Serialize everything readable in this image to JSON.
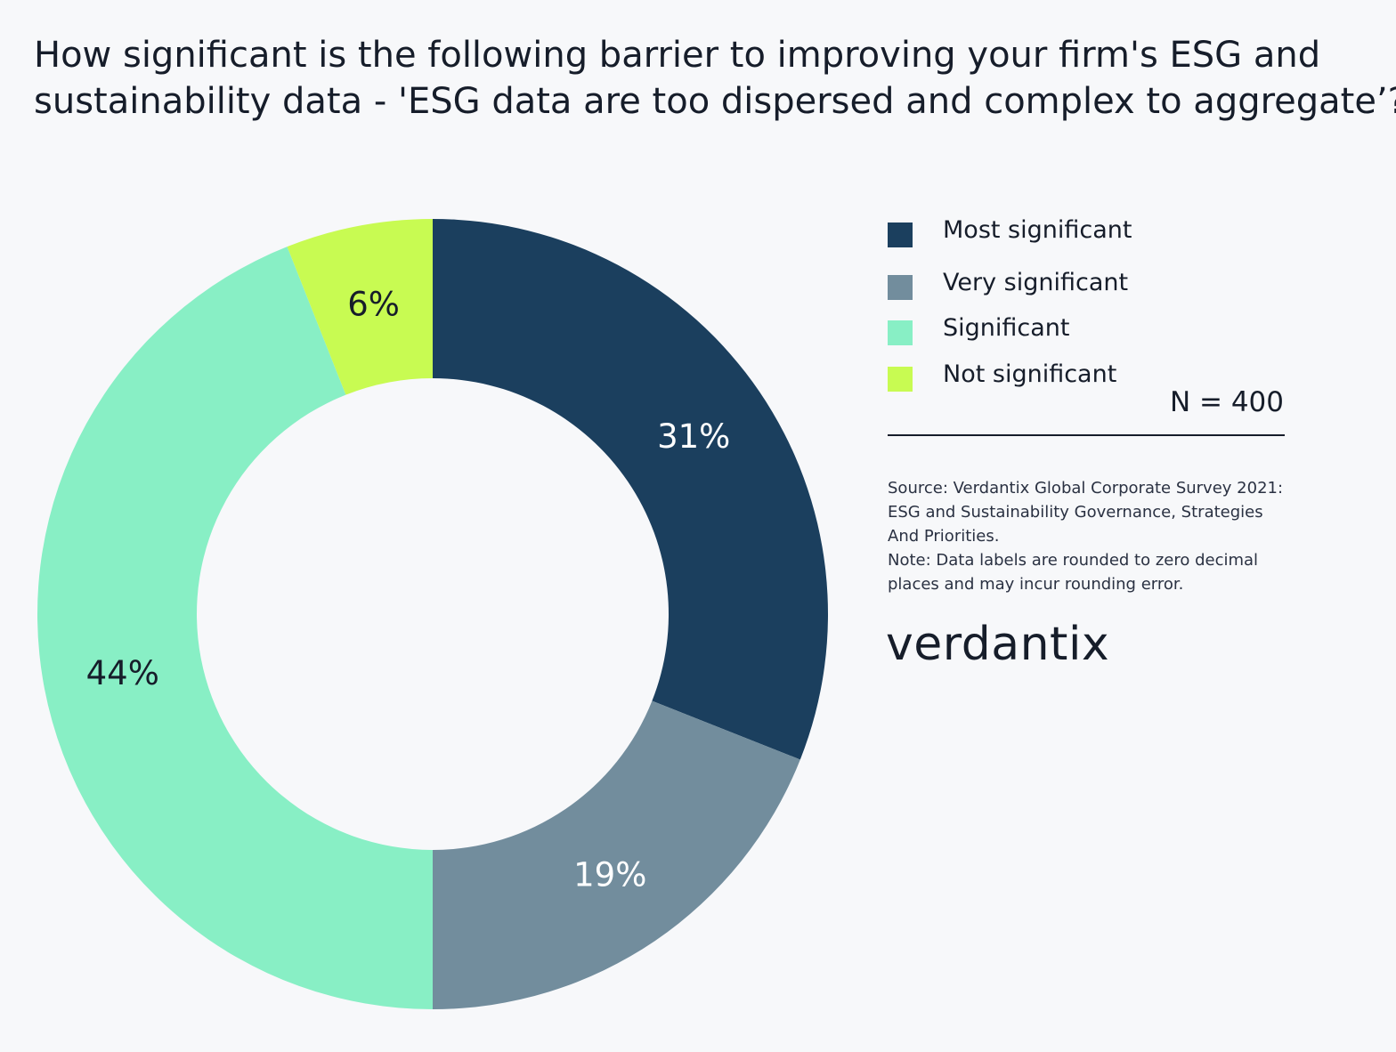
{
  "title_lines": [
    "How significant is the following barrier to improving your firm's ESG and",
    "sustainability data - 'ESG data are too dispersed and complex to aggregate’?"
  ],
  "chart_data": {
    "type": "pie",
    "donut": true,
    "title": "How significant is the following barrier to improving your firm's ESG and sustainability data - 'ESG data are too dispersed and complex to aggregate’?",
    "categories": [
      "Most significant",
      "Very significant",
      "Significant",
      "Not significant"
    ],
    "values": [
      31,
      19,
      44,
      6
    ],
    "data_labels": [
      "31%",
      "19%",
      "44%",
      "6%"
    ],
    "colors": [
      "#1b3f5e",
      "#728d9d",
      "#88efc5",
      "#c8fb52"
    ],
    "label_colors": [
      "#ffffff",
      "#ffffff",
      "#161d2a",
      "#161d2a"
    ],
    "legend_position": "right"
  },
  "legend": {
    "items": [
      {
        "label": "Most significant",
        "color": "#1b3f5e"
      },
      {
        "label": "Very significant",
        "color": "#728d9d"
      },
      {
        "label": "Significant",
        "color": "#88efc5"
      },
      {
        "label": "Not significant",
        "color": "#c8fb52"
      }
    ]
  },
  "sample_size": "N = 400",
  "source_lines": [
    "Source: Verdantix Global Corporate Survey 2021:",
    "ESG and Sustainability Governance, Strategies",
    "And Priorities.",
    "Note: Data labels are rounded to zero decimal",
    "places and may incur rounding error."
  ],
  "logo_text": "verdantix"
}
